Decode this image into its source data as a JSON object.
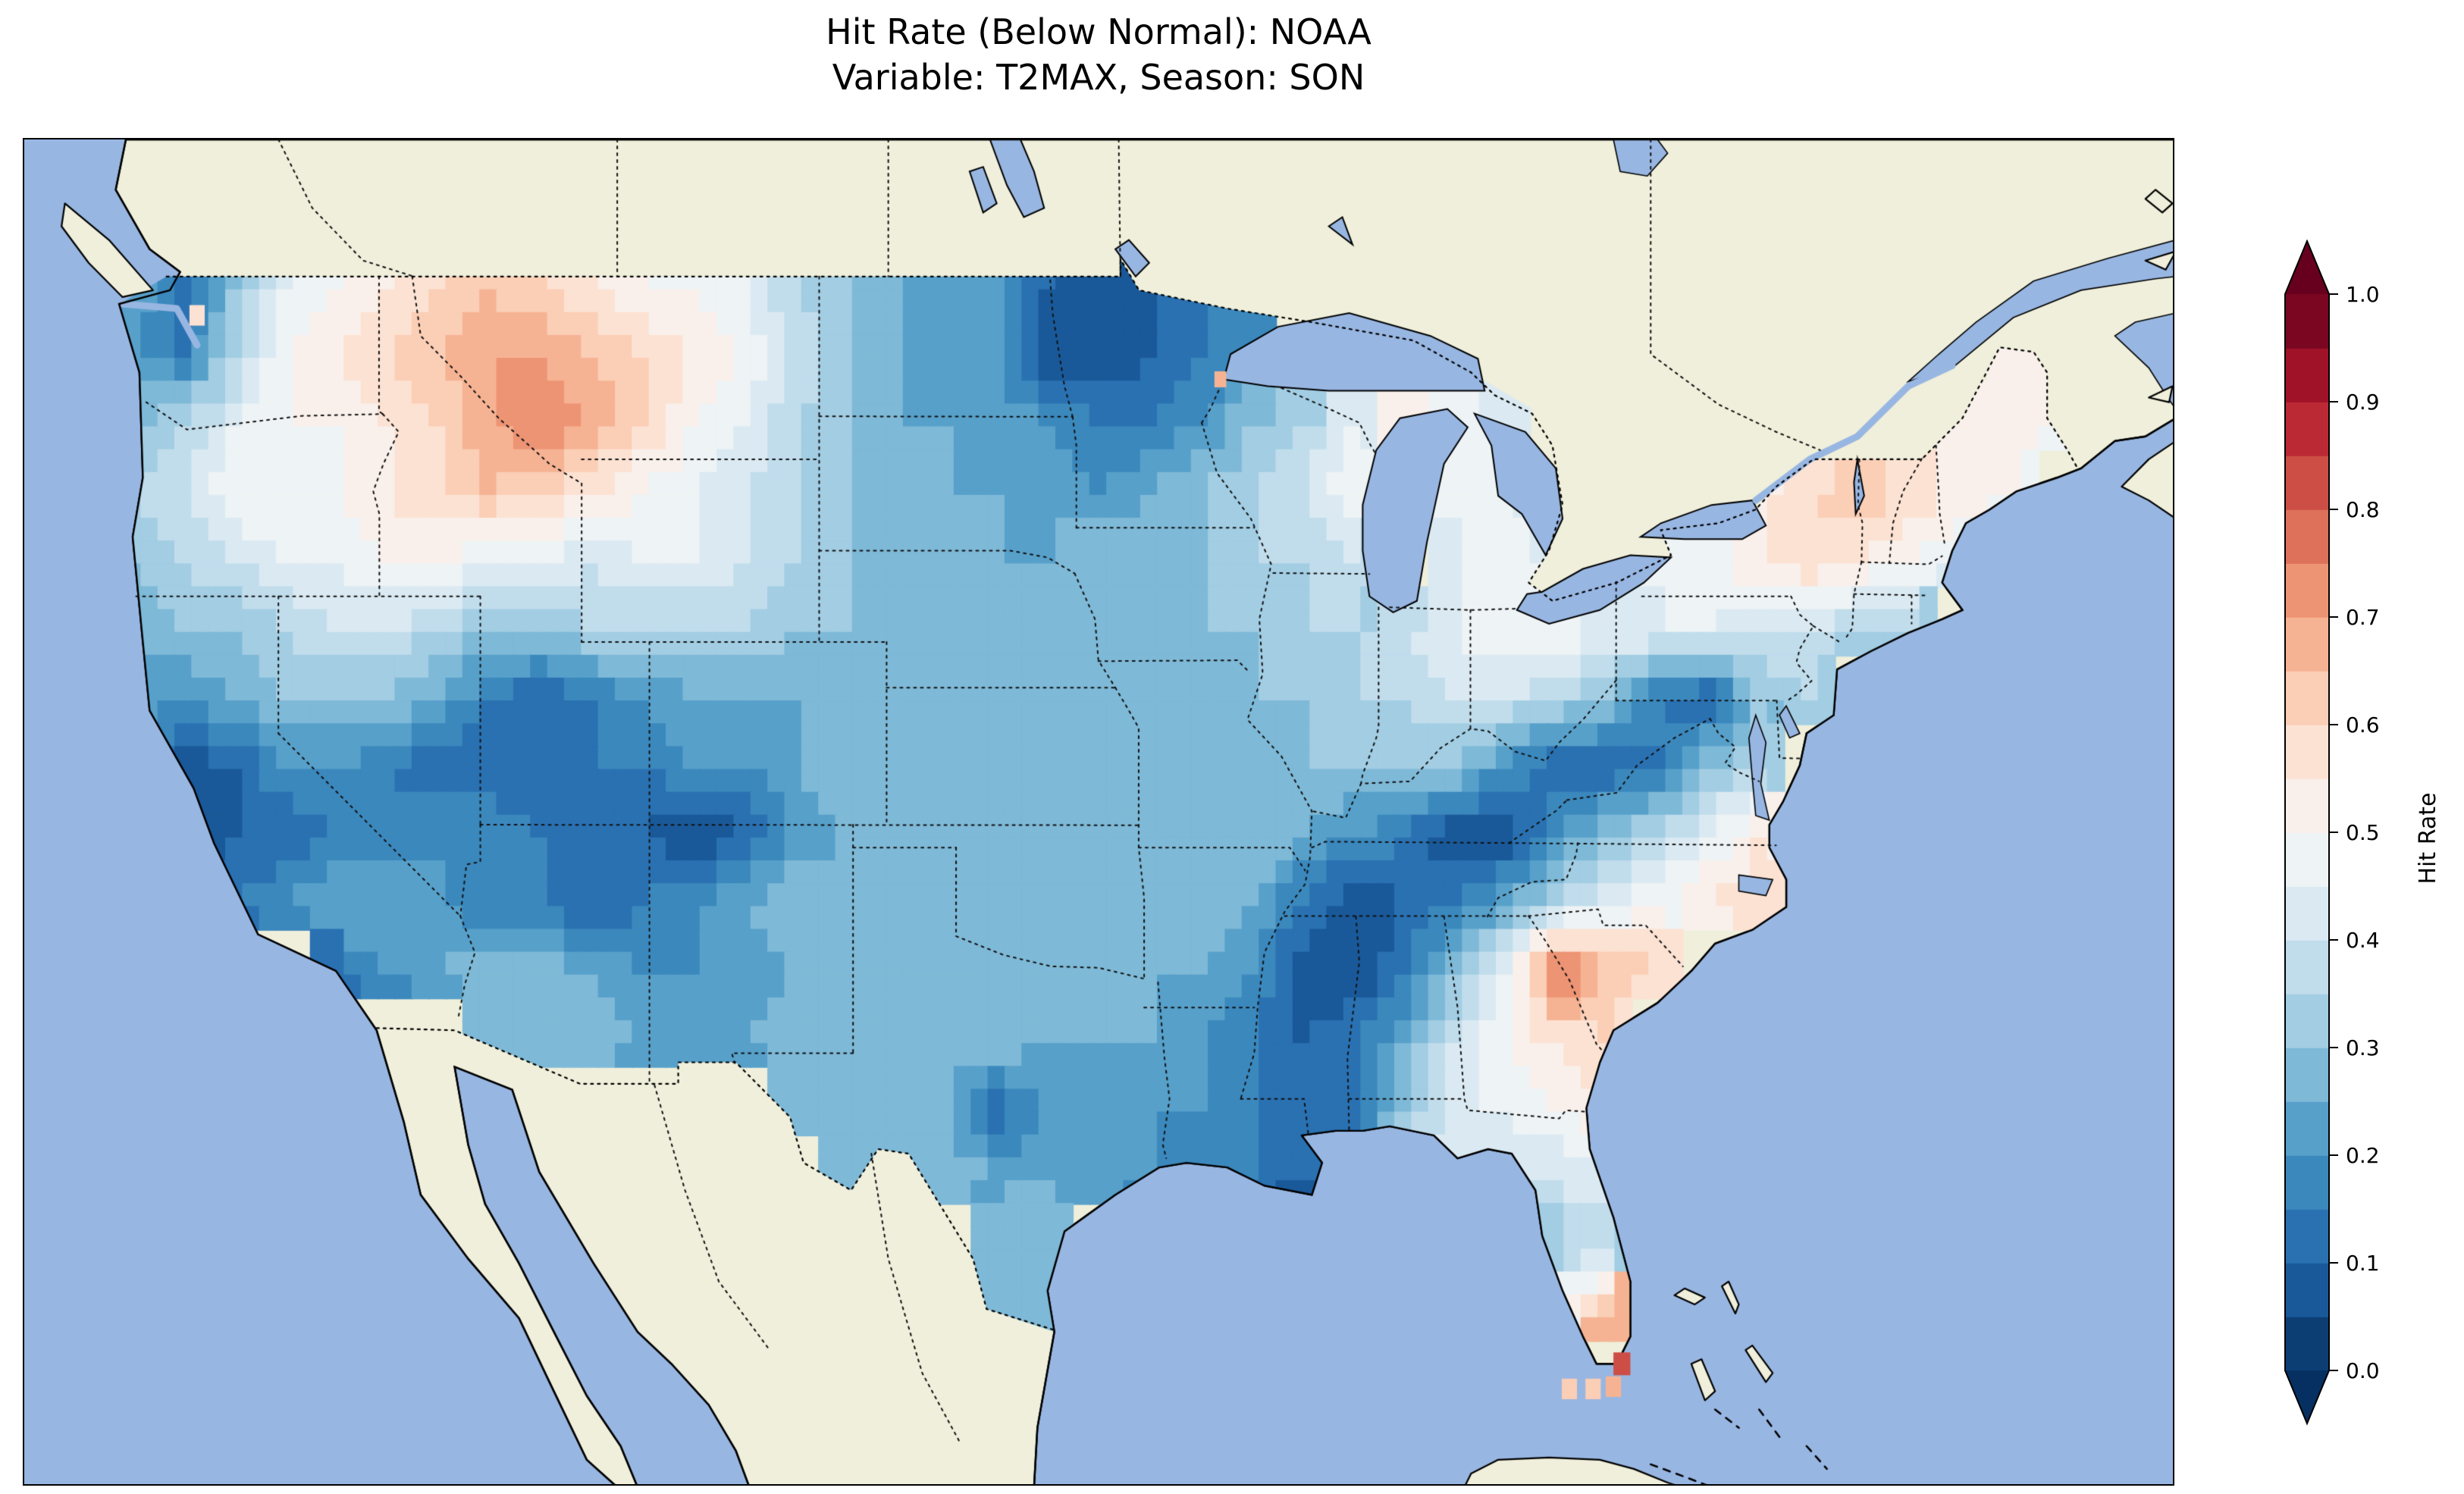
{
  "title": {
    "line1": "Hit Rate (Below Normal): NOAA",
    "line2": "Variable: T2MAX, Season: SON"
  },
  "colorbar": {
    "label": "Hit Rate",
    "ticks": [
      "1.0",
      "0.9",
      "0.8",
      "0.7",
      "0.6",
      "0.5",
      "0.4",
      "0.3",
      "0.2",
      "0.1",
      "0.0"
    ],
    "vmin": 0.0,
    "vmax": 1.0,
    "bin_size": 0.05,
    "extend": "both",
    "cmap_name": "RdBu_r",
    "cmap_anchors": [
      "#053061",
      "#2166ac",
      "#4393c3",
      "#92c5de",
      "#d1e5f0",
      "#f7f7f7",
      "#fddbc7",
      "#f4a582",
      "#d6604d",
      "#b2182b",
      "#67001f"
    ]
  },
  "map": {
    "ocean_color": "#98b6e2",
    "land_color": "#efefdb",
    "lake_color": "#98b6e2",
    "coastline_color": "#000000"
  },
  "chart_data": {
    "type": "heatmap",
    "title": "Hit Rate (Below Normal): NOAA",
    "subtitle": "Variable: T2MAX, Season: SON",
    "variable": "T2MAX",
    "season": "SON",
    "dataset": "NOAA",
    "legend_label": "Hit Rate",
    "value_range": [
      0.0,
      1.0
    ],
    "extent": {
      "lon_min": -127.5,
      "lon_max": -64.0,
      "lat_min": 22.5,
      "lat_max": 52.0
    },
    "grid": {
      "lon_start": -124.25,
      "lon_step": 1.5,
      "lat_start": 48.75,
      "lat_step": -1.5,
      "rows": 17,
      "cols": 40,
      "values": [
        [
          0.25,
          0.1,
          0.3,
          0.45,
          0.5,
          0.55,
          0.6,
          0.65,
          0.6,
          0.55,
          0.5,
          0.5,
          0.45,
          0.35,
          0.3,
          0.25,
          0.25,
          0.2,
          0.1,
          0.05,
          0.1,
          0.15,
          0.2,
          null,
          null,
          null,
          null,
          null,
          null,
          null,
          null,
          null,
          null,
          null,
          null,
          null,
          null,
          null,
          null,
          null
        ],
        [
          0.2,
          0.15,
          0.35,
          0.5,
          0.55,
          0.6,
          0.65,
          0.7,
          0.7,
          0.65,
          0.6,
          0.55,
          0.5,
          0.4,
          0.3,
          0.25,
          0.25,
          0.2,
          0.05,
          0.05,
          0.1,
          0.15,
          0.2,
          null,
          null,
          null,
          null,
          null,
          null,
          null,
          null,
          null,
          null,
          null,
          null,
          null,
          null,
          0.55,
          0.5,
          null
        ],
        [
          0.3,
          0.35,
          0.45,
          0.5,
          0.5,
          0.55,
          0.6,
          0.7,
          0.75,
          0.7,
          0.6,
          0.5,
          0.45,
          0.35,
          0.3,
          0.25,
          0.25,
          0.25,
          0.2,
          0.15,
          0.15,
          0.2,
          0.3,
          0.35,
          0.45,
          0.55,
          0.5,
          0.45,
          null,
          null,
          null,
          null,
          null,
          null,
          null,
          null,
          0.55,
          0.55,
          0.5,
          null
        ],
        [
          0.35,
          0.4,
          0.5,
          0.5,
          0.5,
          0.55,
          0.6,
          0.65,
          0.6,
          0.55,
          0.5,
          0.45,
          0.4,
          0.35,
          0.3,
          0.3,
          0.25,
          0.25,
          0.25,
          0.2,
          0.25,
          0.3,
          0.35,
          0.4,
          0.5,
          null,
          0.5,
          0.45,
          null,
          null,
          null,
          null,
          0.55,
          0.6,
          0.65,
          0.6,
          0.55,
          0.5,
          null,
          null
        ],
        [
          0.3,
          0.35,
          0.4,
          0.45,
          0.45,
          0.5,
          0.5,
          0.45,
          0.45,
          0.4,
          0.45,
          0.45,
          0.4,
          0.35,
          0.3,
          0.3,
          0.3,
          0.25,
          0.25,
          0.3,
          0.3,
          0.3,
          0.35,
          0.35,
          0.4,
          null,
          0.45,
          0.5,
          0.45,
          null,
          0.5,
          0.5,
          0.55,
          0.6,
          0.55,
          0.5,
          0.45,
          null,
          null,
          null
        ],
        [
          0.25,
          0.3,
          0.3,
          0.35,
          0.4,
          0.4,
          0.35,
          0.3,
          0.3,
          0.35,
          0.35,
          0.35,
          0.35,
          0.3,
          0.3,
          0.3,
          0.3,
          0.25,
          0.3,
          0.3,
          0.3,
          0.3,
          0.3,
          0.35,
          0.35,
          0.4,
          0.45,
          0.5,
          0.5,
          0.45,
          0.45,
          0.45,
          0.4,
          0.4,
          0.35,
          0.35,
          null,
          null,
          null,
          null
        ],
        [
          0.25,
          0.2,
          0.25,
          0.3,
          0.3,
          0.3,
          0.25,
          0.15,
          0.1,
          0.15,
          0.2,
          0.25,
          0.25,
          0.25,
          0.3,
          0.3,
          0.3,
          0.3,
          0.3,
          0.3,
          0.3,
          0.3,
          0.3,
          0.3,
          0.35,
          0.35,
          0.4,
          0.4,
          0.35,
          0.3,
          0.15,
          0.1,
          0.3,
          0.35,
          null,
          null,
          null,
          null,
          null,
          null
        ],
        [
          0.2,
          0.05,
          0.1,
          0.2,
          0.2,
          0.15,
          0.1,
          0.1,
          0.1,
          0.15,
          0.15,
          0.2,
          0.2,
          0.25,
          0.3,
          0.3,
          0.3,
          0.3,
          0.3,
          0.3,
          0.3,
          0.3,
          0.3,
          0.3,
          0.3,
          0.3,
          0.3,
          0.2,
          0.1,
          0.1,
          0.15,
          0.3,
          0.35,
          null,
          null,
          null,
          null,
          null,
          null,
          null
        ],
        [
          0.15,
          0.05,
          0.1,
          0.1,
          0.15,
          0.15,
          0.2,
          0.2,
          0.15,
          0.1,
          0.1,
          0.05,
          0.1,
          0.2,
          0.25,
          0.3,
          0.3,
          0.3,
          0.3,
          0.3,
          0.3,
          0.3,
          0.3,
          0.25,
          0.2,
          0.15,
          0.05,
          0.05,
          0.2,
          0.3,
          0.35,
          0.45,
          0.55,
          null,
          null,
          null,
          null,
          null,
          null,
          null
        ],
        [
          0.15,
          0.1,
          0.15,
          0.2,
          0.25,
          0.25,
          0.2,
          0.15,
          0.15,
          0.1,
          0.15,
          0.2,
          0.25,
          0.3,
          0.3,
          0.3,
          0.3,
          0.3,
          0.3,
          0.3,
          0.3,
          0.3,
          0.25,
          0.15,
          0.05,
          0.1,
          0.15,
          0.25,
          0.35,
          0.45,
          0.5,
          0.55,
          0.6,
          null,
          null,
          null,
          null,
          null,
          null,
          null
        ],
        [
          null,
          null,
          null,
          null,
          0.15,
          0.2,
          0.25,
          0.3,
          0.3,
          0.25,
          0.2,
          0.2,
          0.2,
          0.25,
          0.3,
          0.3,
          0.3,
          0.3,
          0.3,
          0.3,
          0.25,
          0.25,
          0.2,
          0.05,
          0.05,
          0.15,
          0.3,
          0.45,
          0.8,
          0.65,
          0.6,
          null,
          null,
          null,
          null,
          null,
          null,
          null,
          null,
          null
        ],
        [
          null,
          null,
          null,
          null,
          null,
          null,
          null,
          0.3,
          0.3,
          0.3,
          0.25,
          0.25,
          0.25,
          0.3,
          0.3,
          0.3,
          0.3,
          0.3,
          0.25,
          0.25,
          0.25,
          0.2,
          0.15,
          0.1,
          0.15,
          0.25,
          0.4,
          0.5,
          0.55,
          0.6,
          null,
          null,
          null,
          null,
          null,
          null,
          null,
          null,
          null,
          null
        ],
        [
          null,
          null,
          null,
          null,
          null,
          null,
          null,
          null,
          null,
          null,
          null,
          null,
          null,
          0.3,
          0.3,
          0.3,
          0.25,
          0.1,
          0.2,
          0.25,
          0.2,
          0.2,
          0.15,
          0.1,
          0.15,
          0.3,
          0.45,
          0.45,
          0.5,
          0.55,
          null,
          null,
          null,
          null,
          null,
          null,
          null,
          null,
          null,
          null
        ],
        [
          null,
          null,
          null,
          null,
          null,
          null,
          null,
          null,
          null,
          null,
          null,
          null,
          null,
          null,
          0.3,
          0.3,
          0.3,
          0.25,
          0.25,
          0.25,
          0.2,
          0.2,
          0.15,
          0.1,
          0.15,
          0.35,
          0.45,
          0.4,
          0.4,
          0.45,
          null,
          null,
          null,
          null,
          null,
          null,
          null,
          null,
          null,
          null
        ],
        [
          null,
          null,
          null,
          null,
          null,
          null,
          null,
          null,
          null,
          null,
          null,
          null,
          null,
          null,
          null,
          null,
          null,
          0.3,
          0.3,
          null,
          null,
          null,
          null,
          null,
          null,
          null,
          null,
          null,
          0.35,
          0.35,
          null,
          null,
          null,
          null,
          null,
          null,
          null,
          null,
          null,
          null
        ],
        [
          null,
          null,
          null,
          null,
          null,
          null,
          null,
          null,
          null,
          null,
          null,
          null,
          null,
          null,
          null,
          null,
          null,
          0.3,
          0.3,
          null,
          null,
          null,
          null,
          null,
          null,
          null,
          null,
          null,
          0.5,
          0.7,
          null,
          null,
          null,
          null,
          null,
          null,
          null,
          null,
          null,
          null
        ],
        [
          null,
          null,
          null,
          null,
          null,
          null,
          null,
          null,
          null,
          null,
          null,
          null,
          null,
          null,
          null,
          null,
          null,
          null,
          null,
          null,
          null,
          null,
          null,
          null,
          null,
          null,
          null,
          null,
          null,
          null,
          null,
          null,
          null,
          null,
          null,
          null,
          null,
          null,
          null,
          null
        ]
      ]
    },
    "extra_cells": [
      {
        "lon": -81.9,
        "lat": 24.65,
        "value": 0.65,
        "size": 0.45
      },
      {
        "lon": -81.2,
        "lat": 24.65,
        "value": 0.65,
        "size": 0.45
      },
      {
        "lon": -80.6,
        "lat": 24.7,
        "value": 0.7,
        "size": 0.45
      },
      {
        "lon": -80.35,
        "lat": 25.2,
        "value": 0.85,
        "size": 0.5
      },
      {
        "lon": -122.4,
        "lat": 48.15,
        "value": 0.6,
        "size": 0.45
      },
      {
        "lon": -92.2,
        "lat": 46.75,
        "value": 0.7,
        "size": 0.35
      }
    ]
  }
}
